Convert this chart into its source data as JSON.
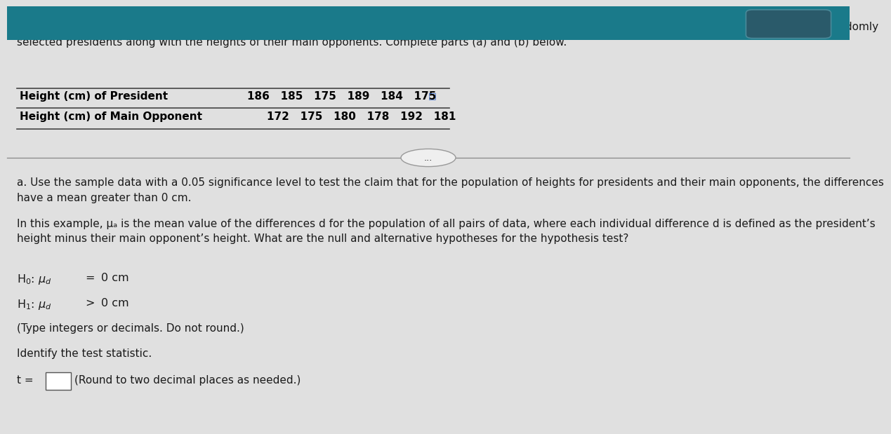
{
  "bg_top_color": "#1a7a8a",
  "bg_main_color": "#e0e0e0",
  "intro_text": "A popular theory is that presidential candidates have an advantage if they are taller than their main opponents. Listed are heights (in centimeters) of randomly\nselected presidents along with the heights of their main opponents. Complete parts (a) and (b) below.",
  "table_row1_label": "Height (cm) of President",
  "table_row1_values": "186   185   175   189   184   175",
  "table_row2_label": "Height (cm) of Main Opponent",
  "table_row2_values": "172   175   180   178   192   181",
  "ellipsis": "...",
  "part_a_text": "a. Use the sample data with a 0.05 significance level to test the claim that for the population of heights for presidents and their main opponents, the differences\nhave a mean greater than 0 cm.",
  "example_text": "In this example, μₐ is the mean value of the differences d for the population of all pairs of data, where each individual difference d is defined as the president’s\nheight minus their main opponent’s height. What are the null and alternative hypotheses for the hypothesis test?",
  "type_note": "(Type integers or decimals. Do not round.)",
  "identify_text": "Identify the test statistic.",
  "text_color": "#1a1a1a",
  "bold_color": "#000000",
  "font_size_main": 11.0
}
